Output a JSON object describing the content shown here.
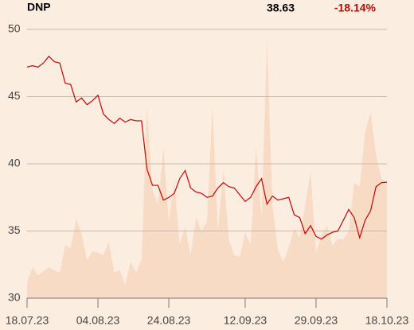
{
  "header": {
    "ticker": "DNP",
    "price": "38.63",
    "change": "-18.14%"
  },
  "chart_data": {
    "type": "line",
    "categories": [
      "18.07.23",
      null,
      null,
      null,
      null,
      null,
      null,
      null,
      null,
      null,
      null,
      null,
      null,
      "04.08.23",
      null,
      null,
      null,
      null,
      null,
      null,
      null,
      null,
      null,
      null,
      null,
      null,
      "24.08.23",
      null,
      null,
      null,
      null,
      null,
      null,
      null,
      null,
      null,
      null,
      null,
      null,
      null,
      "12.09.23",
      null,
      null,
      null,
      null,
      null,
      null,
      null,
      null,
      null,
      null,
      null,
      null,
      "29.09.23",
      null,
      null,
      null,
      null,
      null,
      null,
      null,
      null,
      null,
      null,
      null,
      null,
      "18.10.23"
    ],
    "series": [
      {
        "name": "volume",
        "kind": "area",
        "color": "#f8dbc5",
        "values": [
          31.2,
          32.3,
          31.7,
          32.0,
          32.3,
          32.1,
          31.9,
          34.0,
          33.7,
          35.9,
          34.8,
          32.8,
          33.5,
          33.4,
          33.2,
          34.2,
          31.9,
          32.1,
          31.0,
          32.7,
          31.9,
          32.9,
          44.3,
          38.0,
          37.0,
          41.1,
          35.7,
          38.7,
          34.0,
          35.3,
          33.2,
          36.0,
          35.0,
          35.7,
          44.3,
          35.0,
          39.6,
          34.4,
          33.2,
          33.1,
          34.9,
          34.0,
          41.3,
          36.0,
          49.2,
          37.0,
          33.6,
          32.7,
          33.8,
          35.2,
          34.5,
          36.9,
          39.4,
          33.4,
          34.7,
          35.4,
          33.9,
          34.4,
          34.4,
          35.0,
          38.6,
          38.3,
          42.4,
          43.8,
          40.7,
          38.9,
          38.6
        ]
      },
      {
        "name": "price",
        "kind": "line",
        "color": "#cc0000",
        "values": [
          47.2,
          47.3,
          47.2,
          47.5,
          48.0,
          47.6,
          47.5,
          46.0,
          45.9,
          44.6,
          44.9,
          44.4,
          44.7,
          45.1,
          43.7,
          43.3,
          43.0,
          43.4,
          43.1,
          43.3,
          43.2,
          43.2,
          39.6,
          38.4,
          38.4,
          37.3,
          37.5,
          37.8,
          38.9,
          39.5,
          38.2,
          37.9,
          37.8,
          37.5,
          37.6,
          38.2,
          38.6,
          38.3,
          38.2,
          37.7,
          37.2,
          37.5,
          38.3,
          38.9,
          37.0,
          37.6,
          37.3,
          37.4,
          37.5,
          36.2,
          36.0,
          34.8,
          35.4,
          34.6,
          34.4,
          34.7,
          34.9,
          35.0,
          35.8,
          36.6,
          36.0,
          34.5,
          35.8,
          36.5,
          38.3,
          38.6,
          38.63
        ]
      }
    ],
    "ylim": [
      30,
      50
    ],
    "yticks": [
      30,
      35,
      40,
      45,
      50
    ],
    "grid": true,
    "grid_color": "#c9b9ad"
  }
}
